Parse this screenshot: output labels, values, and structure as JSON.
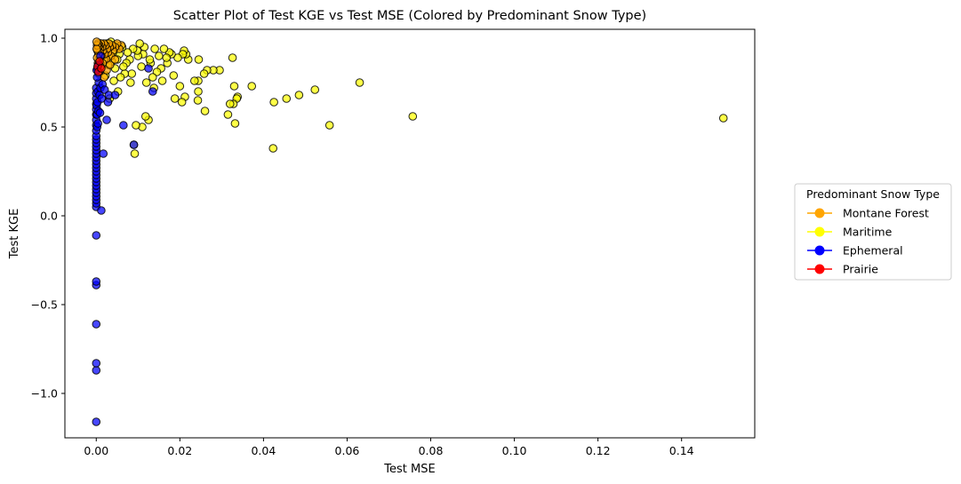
{
  "chart_data": {
    "type": "scatter",
    "title": "Scatter Plot of Test KGE vs Test MSE (Colored by Predominant Snow Type)",
    "xlabel": "Test MSE",
    "ylabel": "Test KGE",
    "xlim": [
      -0.0075,
      0.1575
    ],
    "ylim": [
      -1.25,
      1.05
    ],
    "xticks": [
      0.0,
      0.02,
      0.04,
      0.06,
      0.08,
      0.1,
      0.12,
      0.14
    ],
    "xtick_labels": [
      "0.00",
      "0.02",
      "0.04",
      "0.06",
      "0.08",
      "0.10",
      "0.12",
      "0.14"
    ],
    "yticks": [
      1.0,
      0.5,
      0.0,
      -0.5,
      -1.0
    ],
    "ytick_labels": [
      "1.0",
      "0.5",
      "0.0",
      "−0.5",
      "−1.0"
    ],
    "grid": false,
    "legend": {
      "title": "Predominant Snow Type",
      "placement": "outside-right",
      "entries": [
        "Montane Forest",
        "Maritime",
        "Ephemeral",
        "Prairie"
      ]
    },
    "colors": {
      "Montane Forest": "#FFA500",
      "Maritime": "#FFFF00",
      "Ephemeral": "#0000FF",
      "Prairie": "#FF0000"
    },
    "series": [
      {
        "name": "Maritime",
        "points": [
          [
            0.15,
            0.55
          ],
          [
            0.0757,
            0.56
          ],
          [
            0.063,
            0.75
          ],
          [
            0.0558,
            0.51
          ],
          [
            0.0523,
            0.71
          ],
          [
            0.0485,
            0.68
          ],
          [
            0.0455,
            0.66
          ],
          [
            0.0425,
            0.64
          ],
          [
            0.0423,
            0.38
          ],
          [
            0.0372,
            0.73
          ],
          [
            0.0338,
            0.67
          ],
          [
            0.0336,
            0.66
          ],
          [
            0.0332,
            0.52
          ],
          [
            0.033,
            0.73
          ],
          [
            0.0328,
            0.63
          ],
          [
            0.0326,
            0.89
          ],
          [
            0.032,
            0.63
          ],
          [
            0.0315,
            0.57
          ],
          [
            0.0295,
            0.82
          ],
          [
            0.028,
            0.82
          ],
          [
            0.0265,
            0.82
          ],
          [
            0.0258,
            0.8
          ],
          [
            0.026,
            0.59
          ],
          [
            0.0245,
            0.88
          ],
          [
            0.0244,
            0.76
          ],
          [
            0.0244,
            0.7
          ],
          [
            0.0243,
            0.65
          ],
          [
            0.0235,
            0.76
          ],
          [
            0.022,
            0.88
          ],
          [
            0.0215,
            0.91
          ],
          [
            0.0212,
            0.67
          ],
          [
            0.021,
            0.93
          ],
          [
            0.0207,
            0.91
          ],
          [
            0.0205,
            0.64
          ],
          [
            0.02,
            0.73
          ],
          [
            0.0195,
            0.89
          ],
          [
            0.0188,
            0.66
          ],
          [
            0.0185,
            0.79
          ],
          [
            0.018,
            0.91
          ],
          [
            0.0175,
            0.92
          ],
          [
            0.017,
            0.86
          ],
          [
            0.0168,
            0.89
          ],
          [
            0.0162,
            0.94
          ],
          [
            0.0158,
            0.76
          ],
          [
            0.0155,
            0.83
          ],
          [
            0.015,
            0.9
          ],
          [
            0.0145,
            0.81
          ],
          [
            0.014,
            0.94
          ],
          [
            0.0138,
            0.72
          ],
          [
            0.0135,
            0.78
          ],
          [
            0.013,
            0.86
          ],
          [
            0.0128,
            0.88
          ],
          [
            0.0125,
            0.54
          ],
          [
            0.012,
            0.75
          ],
          [
            0.0118,
            0.56
          ],
          [
            0.0115,
            0.95
          ],
          [
            0.0112,
            0.91
          ],
          [
            0.011,
            0.5
          ],
          [
            0.0108,
            0.84
          ],
          [
            0.0104,
            0.97
          ],
          [
            0.01,
            0.9
          ],
          [
            0.0098,
            0.93
          ],
          [
            0.0095,
            0.51
          ],
          [
            0.0092,
            0.35
          ],
          [
            0.009,
            0.4
          ],
          [
            0.0088,
            0.94
          ],
          [
            0.0085,
            0.8
          ],
          [
            0.0082,
            0.75
          ],
          [
            0.008,
            0.88
          ],
          [
            0.0075,
            0.92
          ],
          [
            0.0072,
            0.86
          ],
          [
            0.0068,
            0.8
          ],
          [
            0.0065,
            0.84
          ],
          [
            0.0062,
            0.95
          ],
          [
            0.0058,
            0.78
          ],
          [
            0.0055,
            0.91
          ],
          [
            0.0052,
            0.7
          ],
          [
            0.005,
            0.88
          ],
          [
            0.0048,
            0.96
          ],
          [
            0.0045,
            0.83
          ],
          [
            0.0042,
            0.76
          ],
          [
            0.004,
            0.92
          ],
          [
            0.0037,
            0.87
          ],
          [
            0.0035,
            0.98
          ],
          [
            0.0032,
            0.66
          ],
          [
            0.003,
            0.9
          ],
          [
            0.0028,
            0.85
          ],
          [
            0.0025,
            0.97
          ],
          [
            0.0022,
            0.79
          ],
          [
            0.002,
            0.93
          ],
          [
            0.0018,
            0.88
          ],
          [
            0.0015,
            0.96
          ],
          [
            0.0012,
            0.91
          ],
          [
            0.001,
            0.97
          ],
          [
            0.0008,
            0.94
          ]
        ]
      },
      {
        "name": "Montane Forest",
        "points": [
          [
            0.006,
            0.96
          ],
          [
            0.0055,
            0.94
          ],
          [
            0.005,
            0.97
          ],
          [
            0.0045,
            0.95
          ],
          [
            0.004,
            0.93
          ],
          [
            0.0038,
            0.96
          ],
          [
            0.0035,
            0.9
          ],
          [
            0.0032,
            0.95
          ],
          [
            0.003,
            0.97
          ],
          [
            0.0028,
            0.92
          ],
          [
            0.0026,
            0.94
          ],
          [
            0.0024,
            0.88
          ],
          [
            0.0022,
            0.96
          ],
          [
            0.002,
            0.91
          ],
          [
            0.0018,
            0.97
          ],
          [
            0.0016,
            0.93
          ],
          [
            0.0015,
            0.86
          ],
          [
            0.0014,
            0.95
          ],
          [
            0.0012,
            0.9
          ],
          [
            0.0011,
            0.97
          ],
          [
            0.001,
            0.84
          ],
          [
            0.0009,
            0.94
          ],
          [
            0.0008,
            0.92
          ],
          [
            0.0007,
            0.96
          ],
          [
            0.0006,
            0.88
          ],
          [
            0.0006,
            0.8
          ],
          [
            0.0005,
            0.95
          ],
          [
            0.0005,
            0.91
          ],
          [
            0.0004,
            0.97
          ],
          [
            0.0004,
            0.86
          ],
          [
            0.0003,
            0.93
          ],
          [
            0.0003,
            0.83
          ],
          [
            0.0002,
            0.96
          ],
          [
            0.0002,
            0.89
          ],
          [
            0.0001,
            0.94
          ],
          [
            0.0001,
            0.98
          ],
          [
            0.0025,
            0.82
          ],
          [
            0.0033,
            0.85
          ],
          [
            0.0045,
            0.88
          ],
          [
            0.0019,
            0.78
          ]
        ]
      },
      {
        "name": "Ephemeral",
        "points": [
          [
            0.0,
            -1.16
          ],
          [
            0.0,
            -0.87
          ],
          [
            0.0,
            -0.83
          ],
          [
            0.0,
            -0.61
          ],
          [
            0.0,
            -0.39
          ],
          [
            0.0,
            -0.37
          ],
          [
            0.0,
            -0.11
          ],
          [
            0.0,
            0.05
          ],
          [
            0.0,
            0.07
          ],
          [
            0.0,
            0.09
          ],
          [
            0.0,
            0.11
          ],
          [
            0.0,
            0.13
          ],
          [
            0.0,
            0.15
          ],
          [
            0.0,
            0.17
          ],
          [
            0.0,
            0.19
          ],
          [
            0.0,
            0.21
          ],
          [
            0.0,
            0.23
          ],
          [
            0.0,
            0.25
          ],
          [
            0.0,
            0.27
          ],
          [
            0.0,
            0.29
          ],
          [
            0.0,
            0.31
          ],
          [
            0.0,
            0.33
          ],
          [
            0.0,
            0.35
          ],
          [
            0.0,
            0.37
          ],
          [
            0.0,
            0.39
          ],
          [
            0.0,
            0.41
          ],
          [
            0.0,
            0.43
          ],
          [
            0.0,
            0.45
          ],
          [
            0.0,
            0.48
          ],
          [
            0.0,
            0.51
          ],
          [
            0.0,
            0.54
          ],
          [
            0.0,
            0.57
          ],
          [
            0.0,
            0.6
          ],
          [
            0.0,
            0.63
          ],
          [
            0.0,
            0.66
          ],
          [
            0.0,
            0.69
          ],
          [
            0.0,
            0.72
          ],
          [
            0.0001,
            0.62
          ],
          [
            0.0002,
            0.5
          ],
          [
            0.0002,
            0.57
          ],
          [
            0.0003,
            0.64
          ],
          [
            0.0004,
            0.52
          ],
          [
            0.0004,
            0.7
          ],
          [
            0.0005,
            0.59
          ],
          [
            0.0006,
            0.75
          ],
          [
            0.0008,
            0.68
          ],
          [
            0.0009,
            0.58
          ],
          [
            0.001,
            0.72
          ],
          [
            0.0012,
            0.03
          ],
          [
            0.0013,
            0.66
          ],
          [
            0.0015,
            0.74
          ],
          [
            0.0017,
            0.35
          ],
          [
            0.002,
            0.71
          ],
          [
            0.0025,
            0.54
          ],
          [
            0.0028,
            0.64
          ],
          [
            0.003,
            0.68
          ],
          [
            0.0045,
            0.68
          ],
          [
            0.0065,
            0.51
          ],
          [
            0.009,
            0.4
          ],
          [
            0.0135,
            0.7
          ],
          [
            0.0125,
            0.83
          ],
          [
            0.001,
            0.9
          ],
          [
            0.0005,
            0.85
          ],
          [
            0.0002,
            0.78
          ],
          [
            0.0001,
            0.82
          ]
        ]
      },
      {
        "name": "Prairie",
        "points": [
          [
            0.0003,
            0.84
          ],
          [
            0.0005,
            0.81
          ],
          [
            0.0008,
            0.87
          ],
          [
            0.0012,
            0.83
          ]
        ]
      }
    ]
  }
}
